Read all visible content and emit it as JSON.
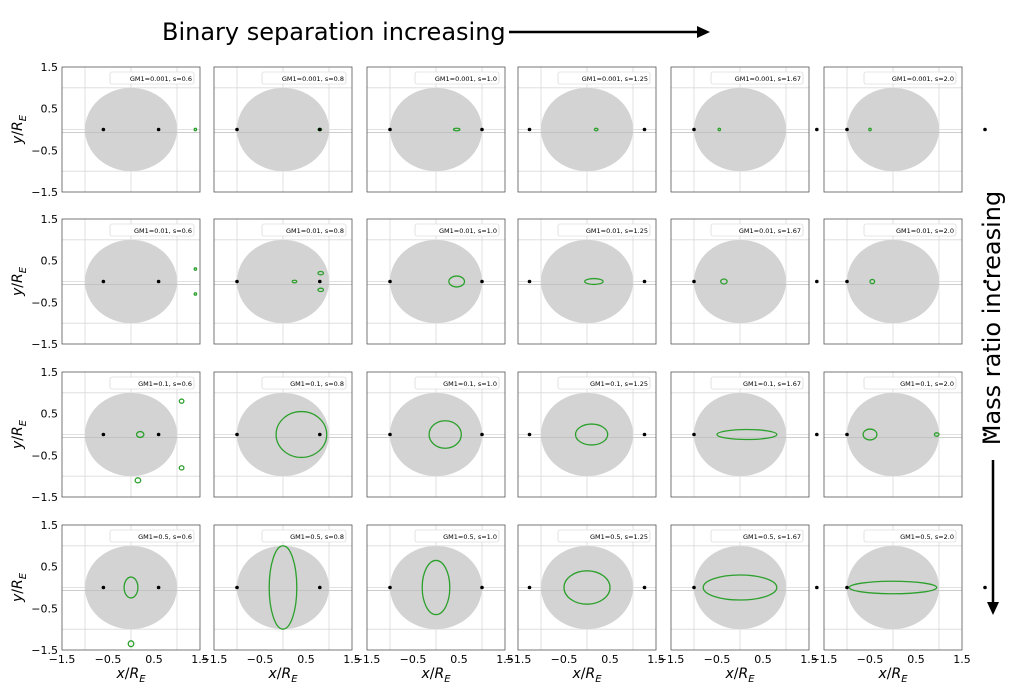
{
  "figure": {
    "top_label": "Binary separation increasing",
    "side_label": "Mass ratio increasing",
    "xlabel": "x/R_E",
    "ylabel": "y/R_E",
    "x_ticks": [
      "−1.5",
      "−0.5",
      "0.5",
      "1.5"
    ],
    "y_ticks": [
      "1.5",
      "0.5",
      "−0.5",
      "−1.5"
    ]
  },
  "colors": {
    "caustic": "#2ca02c",
    "disk": "#d3d3d3",
    "grid": "#d9d9d9",
    "lens": "#000000"
  },
  "chart_data": {
    "type": "scatter",
    "description_rows": "mass ratio q",
    "description_cols": "separation s",
    "xlim": [
      -1.5,
      1.5
    ],
    "ylim": [
      -1.5,
      1.5
    ],
    "grid": true,
    "disk_radius": 1.0,
    "q_values": [
      0.001,
      0.01,
      0.1,
      0.5
    ],
    "s_values": [
      0.6,
      0.8,
      1.0,
      1.25,
      1.67,
      2.0
    ],
    "legends": [
      [
        "GM1=0.001, s=0.6",
        "GM1=0.001, s=0.8",
        "GM1=0.001, s=1.0",
        "GM1=0.001, s=1.25",
        "GM1=0.001, s=1.67",
        "GM1=0.001, s=2.0"
      ],
      [
        "GM1=0.01, s=0.6",
        "GM1=0.01, s=0.8",
        "GM1=0.01, s=1.0",
        "GM1=0.01, s=1.25",
        "GM1=0.01, s=1.67",
        "GM1=0.01, s=2.0"
      ],
      [
        "GM1=0.1, s=0.6",
        "GM1=0.1, s=0.8",
        "GM1=0.1, s=1.0",
        "GM1=0.1, s=1.25",
        "GM1=0.1, s=1.67",
        "GM1=0.1, s=2.0"
      ],
      [
        "GM1=0.5, s=0.6",
        "GM1=0.5, s=0.8",
        "GM1=0.5, s=1.0",
        "GM1=0.5, s=1.25",
        "GM1=0.5, s=1.67",
        "GM1=0.5, s=2.0"
      ]
    ],
    "lenses": [
      [
        [
          -0.6,
          0.6
        ],
        [
          -1.0,
          0.8
        ],
        [
          -1.0,
          1.0
        ],
        [
          -1.25,
          1.25
        ],
        [
          -1.0,
          1.67
        ],
        [
          -1.0,
          2.0
        ]
      ],
      [
        [
          -0.6,
          0.6
        ],
        [
          -1.0,
          0.8
        ],
        [
          -1.0,
          1.0
        ],
        [
          -1.25,
          1.25
        ],
        [
          -1.0,
          1.67
        ],
        [
          -1.0,
          2.0
        ]
      ],
      [
        [
          -0.6,
          0.6
        ],
        [
          -1.0,
          0.8
        ],
        [
          -1.0,
          1.0
        ],
        [
          -1.25,
          1.25
        ],
        [
          -1.0,
          1.67
        ],
        [
          -1.0,
          2.0
        ]
      ],
      [
        [
          -0.6,
          0.6
        ],
        [
          -1.0,
          0.8
        ],
        [
          -1.0,
          1.0
        ],
        [
          -1.25,
          1.25
        ],
        [
          -1.0,
          1.67
        ],
        [
          -1.0,
          2.0
        ]
      ]
    ],
    "caustics": [
      [
        [
          {
            "cx": 1.4,
            "cy": 0.0,
            "rx": 0.015,
            "ry": 0.015
          }
        ],
        [
          {
            "cx": 0.8,
            "cy": 0.0,
            "rx": 0.04,
            "ry": 0.03
          }
        ],
        [
          {
            "cx": 0.45,
            "cy": 0.0,
            "rx": 0.07,
            "ry": 0.03
          }
        ],
        [
          {
            "cx": 0.2,
            "cy": 0.0,
            "rx": 0.04,
            "ry": 0.02
          }
        ],
        [
          {
            "cx": -0.45,
            "cy": 0.0,
            "rx": 0.025,
            "ry": 0.015
          }
        ],
        [
          {
            "cx": -0.5,
            "cy": 0.0,
            "rx": 0.02,
            "ry": 0.012
          }
        ]
      ],
      [
        [
          {
            "cx": 1.4,
            "cy": 0.3,
            "rx": 0.02,
            "ry": 0.02
          },
          {
            "cx": 1.4,
            "cy": -0.3,
            "rx": 0.02,
            "ry": 0.02
          }
        ],
        [
          {
            "cx": 0.25,
            "cy": 0.0,
            "rx": 0.05,
            "ry": 0.03
          },
          {
            "cx": 0.82,
            "cy": 0.2,
            "rx": 0.06,
            "ry": 0.04
          },
          {
            "cx": 0.82,
            "cy": -0.2,
            "rx": 0.06,
            "ry": 0.04
          }
        ],
        [
          {
            "cx": 0.45,
            "cy": 0.0,
            "rx": 0.17,
            "ry": 0.13
          }
        ],
        [
          {
            "cx": 0.15,
            "cy": 0.0,
            "rx": 0.2,
            "ry": 0.07
          }
        ],
        [
          {
            "cx": -0.35,
            "cy": 0.0,
            "rx": 0.07,
            "ry": 0.06
          }
        ],
        [
          {
            "cx": -0.45,
            "cy": 0.0,
            "rx": 0.05,
            "ry": 0.05
          }
        ]
      ],
      [
        [
          {
            "cx": 0.2,
            "cy": 0.0,
            "rx": 0.08,
            "ry": 0.07
          },
          {
            "cx": 1.1,
            "cy": 0.8,
            "rx": 0.05,
            "ry": 0.05
          },
          {
            "cx": 1.1,
            "cy": -0.8,
            "rx": 0.05,
            "ry": 0.05
          },
          {
            "cx": 0.15,
            "cy": -1.1,
            "rx": 0.06,
            "ry": 0.06
          }
        ],
        [
          {
            "cx": 0.4,
            "cy": 0.0,
            "rx": 0.55,
            "ry": 0.55
          }
        ],
        [
          {
            "cx": 0.2,
            "cy": 0.0,
            "rx": 0.35,
            "ry": 0.33
          }
        ],
        [
          {
            "cx": 0.1,
            "cy": 0.0,
            "rx": 0.35,
            "ry": 0.25
          }
        ],
        [
          {
            "cx": 0.15,
            "cy": 0.0,
            "rx": 0.65,
            "ry": 0.12
          }
        ],
        [
          {
            "cx": -0.5,
            "cy": 0.0,
            "rx": 0.15,
            "ry": 0.13
          },
          {
            "cx": 0.95,
            "cy": 0.0,
            "rx": 0.05,
            "ry": 0.04
          }
        ]
      ],
      [
        [
          {
            "cx": 0.0,
            "cy": 0.0,
            "rx": 0.15,
            "ry": 0.25
          },
          {
            "cx": 0.0,
            "cy": -1.35,
            "rx": 0.06,
            "ry": 0.07
          }
        ],
        [
          {
            "cx": 0.0,
            "cy": 0.0,
            "rx": 0.3,
            "ry": 1.0
          }
        ],
        [
          {
            "cx": 0.0,
            "cy": 0.0,
            "rx": 0.3,
            "ry": 0.65
          }
        ],
        [
          {
            "cx": 0.0,
            "cy": 0.0,
            "rx": 0.5,
            "ry": 0.4
          }
        ],
        [
          {
            "cx": 0.0,
            "cy": 0.0,
            "rx": 0.8,
            "ry": 0.3
          }
        ],
        [
          {
            "cx": 0.0,
            "cy": 0.0,
            "rx": 0.95,
            "ry": 0.15
          }
        ]
      ]
    ]
  }
}
